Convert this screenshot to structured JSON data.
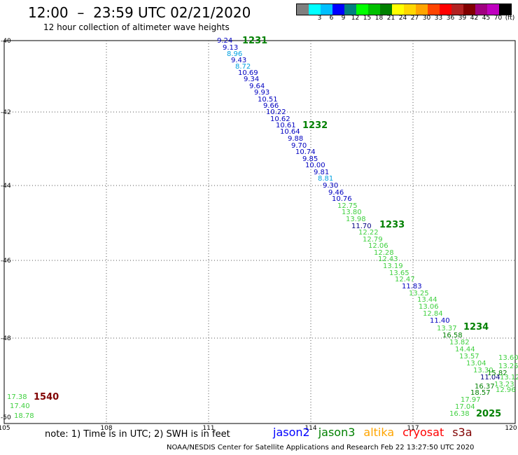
{
  "header": {
    "title": "12:00  –  23:59 UTC 02/21/2020",
    "subtitle": "12 hour collection of altimeter wave heights"
  },
  "colorbar": {
    "colors": [
      "#808080",
      "#00ffff",
      "#00bfff",
      "#0000ff",
      "#008080",
      "#00ff00",
      "#00c000",
      "#008000",
      "#ffff00",
      "#ffd700",
      "#ffa500",
      "#ff4500",
      "#ff0000",
      "#b22222",
      "#800000",
      "#a0007f",
      "#c000c0",
      "#000000"
    ],
    "labels": [
      "",
      "3",
      "6",
      "9",
      "12",
      "15",
      "18",
      "21",
      "24",
      "27",
      "30",
      "33",
      "36",
      "39",
      "42",
      "45",
      "70",
      "(ft)"
    ]
  },
  "axes": {
    "lon_ticks": [
      "105",
      "108",
      "111",
      "114",
      "117",
      "120"
    ],
    "lat_ticks": [
      "-40",
      "-42",
      "-44",
      "-46",
      "-48",
      "-50"
    ]
  },
  "passes": [
    {
      "label": "1231",
      "color": "#008000"
    },
    {
      "label": "1232",
      "color": "#008000"
    },
    {
      "label": "1233",
      "color": "#008000"
    },
    {
      "label": "1234",
      "color": "#008000"
    },
    {
      "label": "2025",
      "color": "#008000"
    },
    {
      "label": "1540",
      "color": "#800000"
    }
  ],
  "observations": [
    {
      "v": "9.24",
      "c": "#0000c0"
    },
    {
      "v": "9.13",
      "c": "#0000c0"
    },
    {
      "v": "8.96",
      "c": "#00a0e0"
    },
    {
      "v": "9.43",
      "c": "#0000c0"
    },
    {
      "v": "8.72",
      "c": "#00a0e0"
    },
    {
      "v": "10.69",
      "c": "#0000c0"
    },
    {
      "v": "9.34",
      "c": "#0000c0"
    },
    {
      "v": "9.64",
      "c": "#0000c0"
    },
    {
      "v": "9.93",
      "c": "#0000c0"
    },
    {
      "v": "10.51",
      "c": "#0000c0"
    },
    {
      "v": "9.66",
      "c": "#0000c0"
    },
    {
      "v": "10.22",
      "c": "#0000c0"
    },
    {
      "v": "10.62",
      "c": "#0000c0"
    },
    {
      "v": "10.61",
      "c": "#0000c0"
    },
    {
      "v": "10.64",
      "c": "#0000c0"
    },
    {
      "v": "9.88",
      "c": "#0000c0"
    },
    {
      "v": "9.70",
      "c": "#0000c0"
    },
    {
      "v": "10.74",
      "c": "#0000c0"
    },
    {
      "v": "9.85",
      "c": "#0000c0"
    },
    {
      "v": "10.00",
      "c": "#0000c0"
    },
    {
      "v": "9.81",
      "c": "#0000c0"
    },
    {
      "v": "8.81",
      "c": "#00a0e0"
    },
    {
      "v": "9.30",
      "c": "#0000c0"
    },
    {
      "v": "9.46",
      "c": "#0000c0"
    },
    {
      "v": "10.76",
      "c": "#0000c0"
    },
    {
      "v": "12.75",
      "c": "#40d040"
    },
    {
      "v": "13.80",
      "c": "#40d040"
    },
    {
      "v": "13.98",
      "c": "#40d040"
    },
    {
      "v": "11.70",
      "c": "#000080"
    },
    {
      "v": "12.22",
      "c": "#40d040"
    },
    {
      "v": "12.79",
      "c": "#40d040"
    },
    {
      "v": "12.06",
      "c": "#40d040"
    },
    {
      "v": "12.28",
      "c": "#40d040"
    },
    {
      "v": "12.43",
      "c": "#40d040"
    },
    {
      "v": "13.19",
      "c": "#40d040"
    },
    {
      "v": "13.65",
      "c": "#40d040"
    },
    {
      "v": "12.47",
      "c": "#40d040"
    },
    {
      "v": "11.83",
      "c": "#0000c0"
    },
    {
      "v": "13.25",
      "c": "#40d040"
    },
    {
      "v": "13.44",
      "c": "#40d040"
    },
    {
      "v": "13.06",
      "c": "#40d040"
    },
    {
      "v": "12.84",
      "c": "#40d040"
    },
    {
      "v": "11.40",
      "c": "#0000c0"
    },
    {
      "v": "13.37",
      "c": "#40d040"
    },
    {
      "v": "16.58",
      "c": "#008000"
    },
    {
      "v": "13.82",
      "c": "#40d040"
    },
    {
      "v": "14.44",
      "c": "#40d040"
    },
    {
      "v": "13.57",
      "c": "#40d040"
    },
    {
      "v": "13.04",
      "c": "#40d040"
    },
    {
      "v": "13.30",
      "c": "#40d040"
    },
    {
      "v": "11.04",
      "c": "#000080"
    },
    {
      "v": "15.82",
      "c": "#008000"
    },
    {
      "v": "16.37",
      "c": "#008000"
    },
    {
      "v": "18.57",
      "c": "#008000"
    },
    {
      "v": "17.97",
      "c": "#40d040"
    },
    {
      "v": "17.04",
      "c": "#40d040"
    },
    {
      "v": "16.38",
      "c": "#40d040"
    },
    {
      "v": "13.25",
      "c": "#40d040"
    },
    {
      "v": "13.12",
      "c": "#40d040"
    },
    {
      "v": "12.96",
      "c": "#40d040"
    },
    {
      "v": "13.23",
      "c": "#40d040"
    },
    {
      "v": "13.60",
      "c": "#40d040"
    },
    {
      "v": "17.38",
      "c": "#40d040"
    },
    {
      "v": "17.40",
      "c": "#40d040"
    },
    {
      "v": "18.78",
      "c": "#40d040"
    }
  ],
  "note": "note:  1) Time is in UTC; 2) SWH is in feet",
  "satellites": [
    {
      "name": "jason2",
      "color": "#0000ff"
    },
    {
      "name": "jason3",
      "color": "#008000"
    },
    {
      "name": "altika",
      "color": "#ffa500"
    },
    {
      "name": "cryosat",
      "color": "#ff0000"
    },
    {
      "name": "s3a",
      "color": "#800000"
    }
  ],
  "footer": "NOAA/NESDIS Center for Satellite Applications and Research     Feb 22 13:27:50 UTC 2020"
}
